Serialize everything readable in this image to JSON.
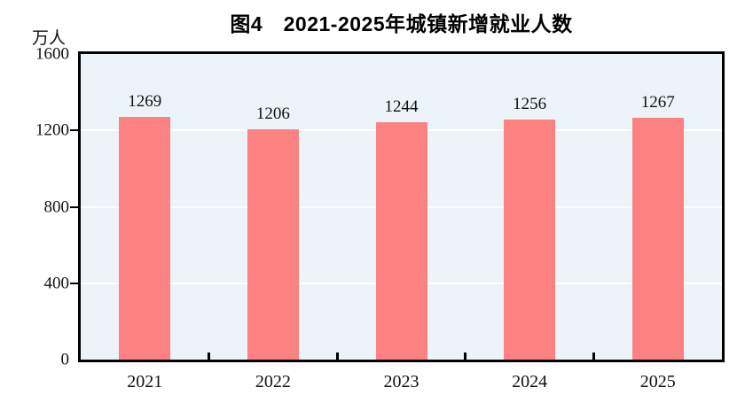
{
  "chart_data": {
    "type": "bar",
    "title": "图4　2021-2025年城镇新增就业人数",
    "ylabel": "万人",
    "xlabel": "",
    "categories": [
      "2021",
      "2022",
      "2023",
      "2024",
      "2025"
    ],
    "values": [
      1269,
      1206,
      1244,
      1256,
      1267
    ],
    "ylim": [
      0,
      1600
    ],
    "yticks": [
      0,
      400,
      800,
      1200,
      1600
    ],
    "grid": true,
    "legend": false,
    "colors": {
      "bar": "#FC8181",
      "plot_background": "#ECF4F9",
      "gridline": "#FFFFFF",
      "axis": "#000000",
      "text": "#111111"
    }
  }
}
